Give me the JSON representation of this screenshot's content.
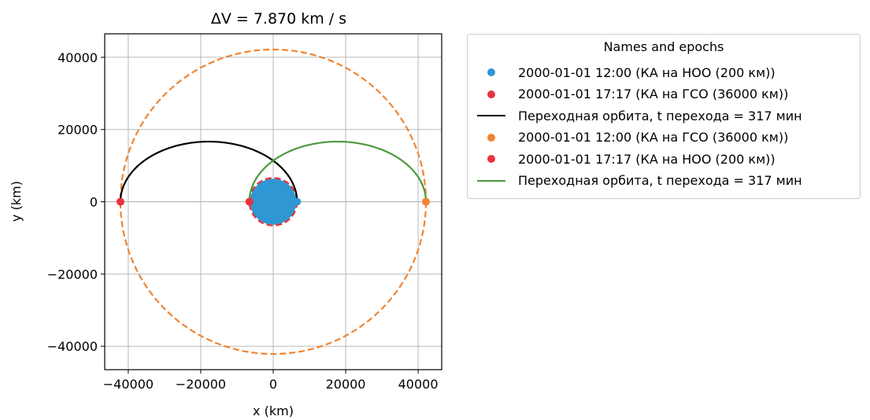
{
  "chart_data": {
    "type": "line",
    "title": "ΔV = 7.870 km / s",
    "xlabel": "x (km)",
    "ylabel": "y (km)",
    "xlim": [
      -46500,
      46500
    ],
    "ylim": [
      -46500,
      46500
    ],
    "xticks": [
      -40000,
      -20000,
      0,
      20000,
      40000
    ],
    "yticks": [
      -40000,
      -20000,
      0,
      20000,
      40000
    ],
    "xtick_labels": [
      "−40000",
      "−20000",
      "0",
      "20000",
      "40000"
    ],
    "ytick_labels": [
      "−40000",
      "−20000",
      "0",
      "20000",
      "40000"
    ],
    "grid": true,
    "legend_title": "Names and epochs",
    "legend_placement": "outside-right-top",
    "earth": {
      "radius": 6371,
      "color": "#2f97d3"
    },
    "orbits": [
      {
        "radius": 6578,
        "color": "#e8323c",
        "style": "dashed"
      },
      {
        "radius": 42157,
        "color": "#ef8533",
        "style": "dashed"
      }
    ],
    "transfers": [
      {
        "color": "#000000",
        "from_x": 6578,
        "to_x": -42157,
        "half": "upper"
      },
      {
        "color": "#4c9a3d",
        "from_x": -6578,
        "to_x": 42157,
        "half": "upper"
      }
    ],
    "series": [
      {
        "name": "2000-01-01 12:00 (КА на НОО (200 км))",
        "kind": "point",
        "color": "#2f97d3",
        "x": [
          6578
        ],
        "y": [
          0
        ]
      },
      {
        "name": "2000-01-01 17:17 (КА на ГСО (36000 км))",
        "kind": "point",
        "color": "#e8323c",
        "x": [
          -42157
        ],
        "y": [
          0
        ]
      },
      {
        "name": "Переходная орбита, t перехода = 317 мин",
        "kind": "line",
        "color": "#000000"
      },
      {
        "name": "2000-01-01 12:00 (КА на ГСО (36000 км))",
        "kind": "point",
        "color": "#ef8533",
        "x": [
          42157
        ],
        "y": [
          0
        ]
      },
      {
        "name": "2000-01-01 17:17 (КА на НОО (200 км))",
        "kind": "point",
        "color": "#e8323c",
        "x": [
          -6578
        ],
        "y": [
          0
        ]
      },
      {
        "name": "Переходная орбита, t перехода = 317 мин",
        "kind": "line",
        "color": "#4c9a3d"
      }
    ]
  }
}
